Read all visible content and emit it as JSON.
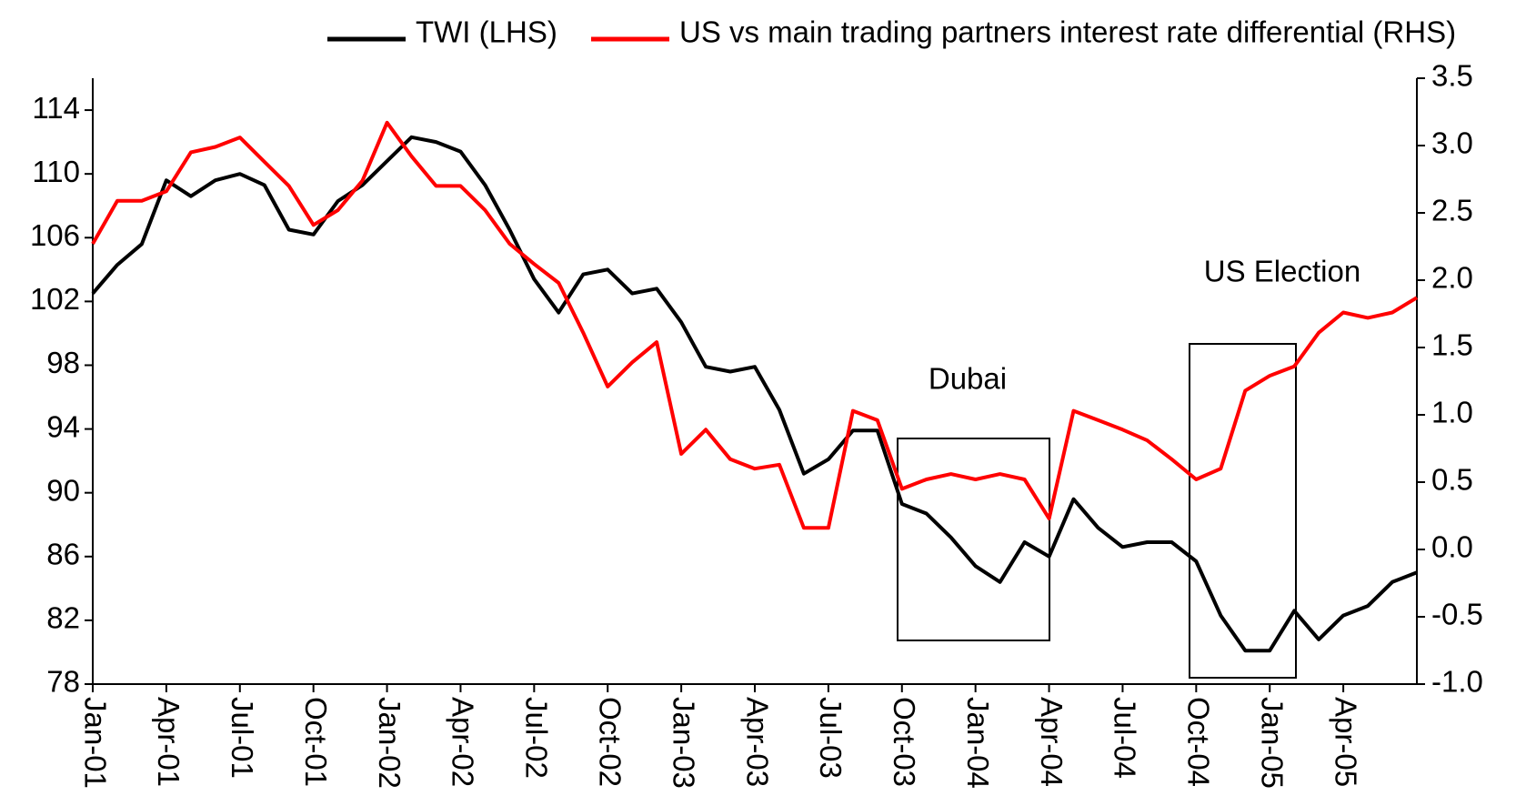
{
  "chart_data": {
    "type": "line",
    "x": [
      "Jan-01",
      "Feb-01",
      "Mar-01",
      "Apr-01",
      "May-01",
      "Jun-01",
      "Jul-01",
      "Aug-01",
      "Sep-01",
      "Oct-01",
      "Nov-01",
      "Dec-01",
      "Jan-02",
      "Feb-02",
      "Mar-02",
      "Apr-02",
      "May-02",
      "Jun-02",
      "Jul-02",
      "Aug-02",
      "Sep-02",
      "Oct-02",
      "Nov-02",
      "Dec-02",
      "Jan-03",
      "Feb-03",
      "Mar-03",
      "Apr-03",
      "May-03",
      "Jun-03",
      "Jul-03",
      "Aug-03",
      "Sep-03",
      "Oct-03",
      "Nov-03",
      "Dec-03",
      "Jan-04",
      "Feb-04",
      "Mar-04",
      "Apr-04",
      "May-04",
      "Jun-04",
      "Jul-04",
      "Aug-04",
      "Sep-04",
      "Oct-04",
      "Nov-04",
      "Dec-04",
      "Jan-05",
      "Feb-05",
      "Mar-05",
      "Apr-05",
      "May-05",
      "Jun-05",
      "Jul-05"
    ],
    "xticks": [
      "Jan-01",
      "Apr-01",
      "Jul-01",
      "Oct-01",
      "Jan-02",
      "Apr-02",
      "Jul-02",
      "Oct-02",
      "Jan-03",
      "Apr-03",
      "Jul-03",
      "Oct-03",
      "Jan-04",
      "Apr-04",
      "Jul-04",
      "Oct-04",
      "Jan-05",
      "Apr-05"
    ],
    "series": [
      {
        "name": "TWI (LHS)",
        "color": "#000000",
        "values": [
          102.5,
          104.3,
          105.6,
          109.6,
          108.6,
          109.6,
          110,
          109.3,
          106.5,
          106.2,
          108.3,
          109.3,
          110.8,
          112.3,
          112,
          111.4,
          109.3,
          106.5,
          103.4,
          101.3,
          103.7,
          104,
          102.5,
          102.8,
          100.7,
          97.9,
          97.6,
          97.9,
          95.2,
          91.2,
          92.1,
          93.9,
          93.9,
          89.3,
          88.7,
          87.2,
          85.4,
          84.4,
          86.9,
          86,
          89.6,
          87.8,
          86.6,
          86.9,
          86.9,
          85.7,
          82.3,
          80.1,
          80.1,
          82.6,
          80.8,
          82.3,
          82.9,
          84.4,
          85
        ]
      },
      {
        "name": "US vs main trading partners interest rate differential (RHS)",
        "color": "#ff0000",
        "axis": "y2",
        "values": [
          2.27,
          2.59,
          2.59,
          2.66,
          2.95,
          2.99,
          3.06,
          2.88,
          2.7,
          2.41,
          2.52,
          2.74,
          3.17,
          2.92,
          2.7,
          2.7,
          2.52,
          2.27,
          2.12,
          1.98,
          1.61,
          1.21,
          1.39,
          1.54,
          0.71,
          0.89,
          0.67,
          0.6,
          0.63,
          0.16,
          0.16,
          1.03,
          0.96,
          0.45,
          0.52,
          0.56,
          0.52,
          0.56,
          0.52,
          0.23,
          1.03,
          0.96,
          0.89,
          0.81,
          0.67,
          0.52,
          0.6,
          1.18,
          1.29,
          1.36,
          1.61,
          1.76,
          1.72,
          1.76,
          1.87
        ]
      }
    ],
    "ylim": [
      78,
      116
    ],
    "yticks": [
      78,
      82,
      86,
      90,
      94,
      98,
      102,
      106,
      110,
      114
    ],
    "y2lim": [
      -1,
      3.5
    ],
    "y2ticks": [
      {
        "value": -1,
        "label": "-1.0"
      },
      -0.5,
      {
        "value": 0,
        "label": "0.0"
      },
      0.5,
      {
        "value": 1,
        "label": "1.0"
      },
      1.5,
      {
        "value": 2,
        "label": "2.0"
      },
      2.5,
      {
        "value": 3,
        "label": "3.0"
      },
      3.5
    ],
    "annotations": [
      "Dubai",
      "US Election"
    ],
    "legend": "top"
  }
}
